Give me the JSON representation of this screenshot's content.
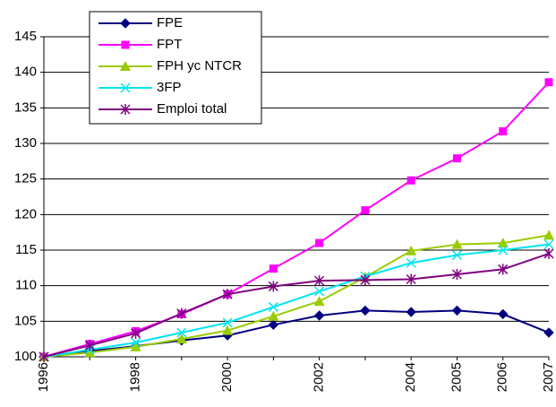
{
  "chart_data": {
    "type": "line",
    "categories": [
      "1996",
      null,
      "1998",
      null,
      "2000",
      null,
      "2002",
      null,
      "2004",
      "2005",
      "2006",
      "2007"
    ],
    "series": [
      {
        "name": "FPE",
        "color": "#000080",
        "marker": "diamond",
        "values": [
          100,
          100.8,
          101.5,
          102.3,
          103.0,
          104.5,
          105.8,
          106.5,
          106.3,
          106.5,
          106.0,
          103.4
        ]
      },
      {
        "name": "FPT",
        "color": "#ff00ff",
        "marker": "square",
        "values": [
          100,
          101.8,
          103.6,
          106.0,
          108.8,
          112.4,
          116.0,
          120.6,
          124.8,
          127.9,
          131.7,
          138.6
        ]
      },
      {
        "name": "FPH yc NTCR",
        "color": "#99cc00",
        "marker": "triangle",
        "values": [
          100,
          100.6,
          101.4,
          102.5,
          103.7,
          105.7,
          107.8,
          111.2,
          114.9,
          115.8,
          116.0,
          117.1
        ]
      },
      {
        "name": "3FP",
        "color": "#00e5ee",
        "marker": "cross",
        "values": [
          100,
          101.0,
          102.0,
          103.4,
          104.8,
          107.0,
          109.2,
          111.3,
          113.2,
          114.3,
          115.0,
          115.8
        ]
      },
      {
        "name": "Emploi total",
        "color": "#800080",
        "marker": "star",
        "values": [
          100,
          101.6,
          103.3,
          106.1,
          108.8,
          109.9,
          110.7,
          110.8,
          110.9,
          111.6,
          112.3,
          114.5
        ]
      }
    ],
    "ylim": [
      100,
      145
    ],
    "yticks": [
      100,
      105,
      110,
      115,
      120,
      125,
      130,
      135,
      140,
      145
    ],
    "grid": true,
    "legend": "top-left"
  }
}
